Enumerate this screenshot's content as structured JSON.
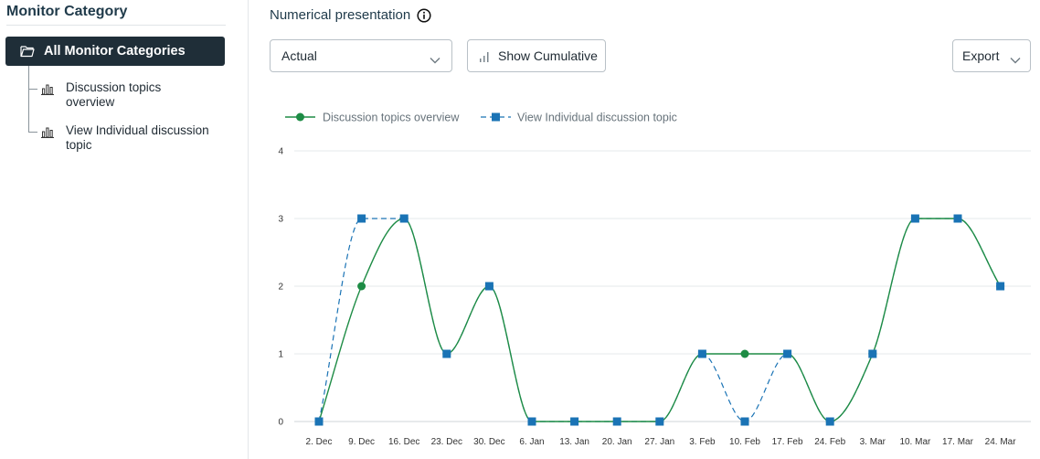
{
  "sidebar": {
    "title": "Monitor Category",
    "root_label": "All Monitor Categories",
    "items": [
      {
        "label": "Discussion topics overview"
      },
      {
        "label": "View Individual discussion topic"
      }
    ]
  },
  "main": {
    "title": "Numerical presentation",
    "select_value": "Actual",
    "cumulative_label": "Show Cumulative",
    "export_label": "Export"
  },
  "colors": {
    "series1": "#1e8c45",
    "series2": "#1a73b5",
    "sidebar_active_bg": "#1f2e38"
  },
  "chart_data": {
    "type": "line",
    "categories": [
      "2. Dec",
      "9. Dec",
      "16. Dec",
      "23. Dec",
      "30. Dec",
      "6. Jan",
      "13. Jan",
      "20. Jan",
      "27. Jan",
      "3. Feb",
      "10. Feb",
      "17. Feb",
      "24. Feb",
      "3. Mar",
      "10. Mar",
      "17. Mar",
      "24. Mar"
    ],
    "y_ticks": [
      "0",
      "1",
      "2",
      "3",
      "4"
    ],
    "ylim": [
      0,
      4
    ],
    "grid": true,
    "legend_position": "top-left",
    "series": [
      {
        "name": "Discussion topics overview",
        "values": [
          0,
          2,
          3,
          1,
          2,
          0,
          0,
          0,
          0,
          1,
          1,
          1,
          0,
          1,
          3,
          3,
          2
        ],
        "marker": "circle",
        "dash": "solid"
      },
      {
        "name": "View Individual discussion topic",
        "values": [
          0,
          3,
          3,
          1,
          2,
          0,
          0,
          0,
          0,
          1,
          0,
          1,
          0,
          1,
          3,
          3,
          2
        ],
        "marker": "square",
        "dash": "dashed"
      }
    ]
  }
}
